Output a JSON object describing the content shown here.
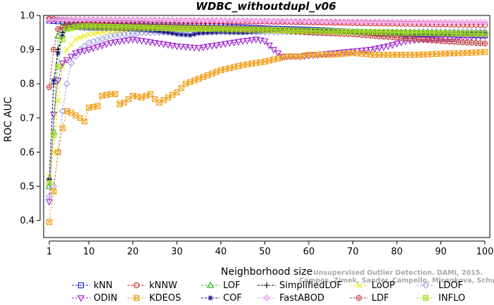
{
  "chart_data": {
    "type": "line",
    "title": "WDBC_withoutdupl_v06",
    "xlabel": "Neighborhood size",
    "ylabel": "ROC AUC",
    "xlim": [
      1,
      100
    ],
    "ylim": [
      0.35,
      1.0
    ],
    "x_ticks": [
      1,
      10,
      20,
      30,
      40,
      50,
      60,
      70,
      80,
      90,
      100
    ],
    "y_ticks": [
      0.4,
      0.5,
      0.6,
      0.7,
      0.8,
      0.9,
      1.0
    ],
    "x_tick_labels": [
      "1",
      "10",
      "20",
      "30",
      "40",
      "50",
      "60",
      "70",
      "80",
      "90",
      "100"
    ],
    "y_tick_labels": [
      "0.4",
      "0.5",
      "0.6",
      "0.7",
      "0.8",
      "0.9",
      "1.0"
    ],
    "grid": false,
    "legend_position": "bottom",
    "series": [
      {
        "name": "kNN",
        "color": "#1f1fd0",
        "marker": "square-dot",
        "points": [
          [
            1,
            0.985
          ],
          [
            2,
            0.984
          ],
          [
            3,
            0.983
          ],
          [
            5,
            0.982
          ],
          [
            10,
            0.98
          ],
          [
            20,
            0.976
          ],
          [
            30,
            0.972
          ],
          [
            40,
            0.968
          ],
          [
            50,
            0.962
          ],
          [
            60,
            0.958
          ],
          [
            70,
            0.952
          ],
          [
            80,
            0.948
          ],
          [
            90,
            0.945
          ],
          [
            100,
            0.942
          ]
        ]
      },
      {
        "name": "kNNW",
        "color": "#d42020",
        "marker": "circle",
        "points": [
          [
            1,
            0.99
          ],
          [
            3,
            0.988
          ],
          [
            5,
            0.987
          ],
          [
            10,
            0.986
          ],
          [
            20,
            0.985
          ],
          [
            30,
            0.984
          ],
          [
            40,
            0.983
          ],
          [
            50,
            0.982
          ],
          [
            60,
            0.98
          ],
          [
            70,
            0.978
          ],
          [
            80,
            0.976
          ],
          [
            90,
            0.974
          ],
          [
            100,
            0.972
          ]
        ]
      },
      {
        "name": "LOF",
        "color": "#20b020",
        "marker": "triangle-up",
        "points": [
          [
            1,
            0.5
          ],
          [
            2,
            0.66
          ],
          [
            3,
            0.94
          ],
          [
            4,
            0.97
          ],
          [
            5,
            0.972
          ],
          [
            8,
            0.972
          ],
          [
            10,
            0.97
          ],
          [
            20,
            0.968
          ],
          [
            30,
            0.966
          ],
          [
            40,
            0.962
          ],
          [
            50,
            0.958
          ],
          [
            60,
            0.955
          ],
          [
            70,
            0.952
          ],
          [
            80,
            0.95
          ],
          [
            90,
            0.948
          ],
          [
            100,
            0.946
          ]
        ]
      },
      {
        "name": "SimplifiedLOF",
        "color": "#000000",
        "marker": "plus",
        "points": [
          [
            1,
            0.52
          ],
          [
            2,
            0.8
          ],
          [
            3,
            0.9
          ],
          [
            4,
            0.95
          ],
          [
            5,
            0.965
          ],
          [
            8,
            0.97
          ],
          [
            10,
            0.968
          ],
          [
            20,
            0.965
          ],
          [
            30,
            0.962
          ],
          [
            40,
            0.96
          ],
          [
            50,
            0.958
          ],
          [
            60,
            0.955
          ],
          [
            70,
            0.952
          ],
          [
            80,
            0.95
          ],
          [
            90,
            0.948
          ],
          [
            100,
            0.946
          ]
        ]
      },
      {
        "name": "LoOP",
        "color": "#e8e800",
        "marker": "x",
        "points": [
          [
            1,
            0.53
          ],
          [
            2,
            0.6
          ],
          [
            3,
            0.75
          ],
          [
            4,
            0.85
          ],
          [
            5,
            0.9
          ],
          [
            7,
            0.93
          ],
          [
            10,
            0.945
          ],
          [
            15,
            0.955
          ],
          [
            20,
            0.958
          ],
          [
            30,
            0.958
          ],
          [
            40,
            0.955
          ],
          [
            50,
            0.954
          ],
          [
            60,
            0.952
          ],
          [
            70,
            0.951
          ],
          [
            80,
            0.95
          ],
          [
            90,
            0.949
          ],
          [
            100,
            0.948
          ]
        ]
      },
      {
        "name": "LDOF",
        "color": "#a0a0e0",
        "marker": "diamond",
        "points": [
          [
            1,
            0.47
          ],
          [
            2,
            0.5
          ],
          [
            3,
            0.6
          ],
          [
            4,
            0.72
          ],
          [
            5,
            0.8
          ],
          [
            6,
            0.86
          ],
          [
            8,
            0.9
          ],
          [
            10,
            0.92
          ],
          [
            15,
            0.94
          ],
          [
            20,
            0.948
          ],
          [
            30,
            0.952
          ],
          [
            40,
            0.952
          ],
          [
            50,
            0.952
          ],
          [
            60,
            0.952
          ],
          [
            70,
            0.952
          ],
          [
            80,
            0.952
          ],
          [
            90,
            0.952
          ],
          [
            100,
            0.952
          ]
        ]
      },
      {
        "name": "ODIN",
        "color": "#9a20d0",
        "marker": "triangle-down",
        "points": [
          [
            1,
            0.455
          ],
          [
            2,
            0.71
          ],
          [
            3,
            0.81
          ],
          [
            4,
            0.86
          ],
          [
            5,
            0.87
          ],
          [
            7,
            0.89
          ],
          [
            10,
            0.9
          ],
          [
            15,
            0.92
          ],
          [
            20,
            0.93
          ],
          [
            25,
            0.92
          ],
          [
            30,
            0.91
          ],
          [
            35,
            0.905
          ],
          [
            40,
            0.915
          ],
          [
            45,
            0.925
          ],
          [
            48,
            0.93
          ],
          [
            50,
            0.925
          ],
          [
            52,
            0.9
          ],
          [
            54,
            0.88
          ],
          [
            58,
            0.88
          ],
          [
            62,
            0.885
          ],
          [
            66,
            0.89
          ],
          [
            70,
            0.895
          ],
          [
            74,
            0.9
          ],
          [
            78,
            0.91
          ],
          [
            82,
            0.925
          ],
          [
            86,
            0.93
          ],
          [
            90,
            0.93
          ],
          [
            95,
            0.935
          ],
          [
            100,
            0.94
          ]
        ]
      },
      {
        "name": "KDEOS",
        "color": "#f0a018",
        "marker": "square-x",
        "points": [
          [
            1,
            0.395
          ],
          [
            2,
            0.485
          ],
          [
            3,
            0.6
          ],
          [
            4,
            0.67
          ],
          [
            5,
            0.72
          ],
          [
            6,
            0.715
          ],
          [
            8,
            0.7
          ],
          [
            9,
            0.69
          ],
          [
            10,
            0.73
          ],
          [
            12,
            0.735
          ],
          [
            13,
            0.765
          ],
          [
            15,
            0.77
          ],
          [
            16,
            0.77
          ],
          [
            17,
            0.74
          ],
          [
            18,
            0.745
          ],
          [
            20,
            0.765
          ],
          [
            22,
            0.76
          ],
          [
            24,
            0.77
          ],
          [
            25,
            0.755
          ],
          [
            26,
            0.745
          ],
          [
            28,
            0.76
          ],
          [
            30,
            0.775
          ],
          [
            32,
            0.8
          ],
          [
            35,
            0.815
          ],
          [
            40,
            0.84
          ],
          [
            45,
            0.855
          ],
          [
            50,
            0.865
          ],
          [
            55,
            0.88
          ],
          [
            58,
            0.88
          ],
          [
            60,
            0.885
          ],
          [
            65,
            0.885
          ],
          [
            70,
            0.89
          ],
          [
            75,
            0.885
          ],
          [
            80,
            0.885
          ],
          [
            85,
            0.885
          ],
          [
            90,
            0.888
          ],
          [
            95,
            0.89
          ],
          [
            100,
            0.893
          ]
        ]
      },
      {
        "name": "COF",
        "color": "#101080",
        "marker": "asterisk",
        "points": [
          [
            1,
            0.52
          ],
          [
            2,
            0.81
          ],
          [
            3,
            0.89
          ],
          [
            4,
            0.94
          ],
          [
            5,
            0.96
          ],
          [
            6,
            0.965
          ],
          [
            10,
            0.962
          ],
          [
            15,
            0.962
          ],
          [
            20,
            0.96
          ],
          [
            25,
            0.955
          ],
          [
            28,
            0.95
          ],
          [
            30,
            0.945
          ],
          [
            33,
            0.942
          ],
          [
            35,
            0.948
          ],
          [
            40,
            0.952
          ],
          [
            45,
            0.95
          ],
          [
            50,
            0.955
          ],
          [
            55,
            0.96
          ],
          [
            60,
            0.958
          ],
          [
            65,
            0.955
          ],
          [
            70,
            0.95
          ],
          [
            75,
            0.945
          ],
          [
            80,
            0.945
          ],
          [
            82,
            0.94
          ],
          [
            85,
            0.945
          ],
          [
            90,
            0.945
          ],
          [
            95,
            0.948
          ],
          [
            100,
            0.95
          ]
        ]
      },
      {
        "name": "FastABOD",
        "color": "#f0a0f0",
        "marker": "diamond-filled",
        "points": [
          [
            1,
            0.985
          ],
          [
            3,
            0.988
          ],
          [
            5,
            0.988
          ],
          [
            10,
            0.988
          ],
          [
            20,
            0.987
          ],
          [
            30,
            0.986
          ],
          [
            40,
            0.985
          ],
          [
            50,
            0.984
          ],
          [
            60,
            0.983
          ],
          [
            70,
            0.982
          ],
          [
            80,
            0.981
          ],
          [
            90,
            0.98
          ],
          [
            100,
            0.98
          ]
        ]
      },
      {
        "name": "LDF",
        "color": "#c04040",
        "marker": "circle-plus",
        "points": [
          [
            1,
            0.79
          ],
          [
            2,
            0.9
          ],
          [
            3,
            0.96
          ],
          [
            5,
            0.97
          ],
          [
            10,
            0.972
          ],
          [
            20,
            0.968
          ],
          [
            30,
            0.966
          ],
          [
            40,
            0.963
          ],
          [
            50,
            0.96
          ],
          [
            55,
            0.955
          ],
          [
            60,
            0.95
          ],
          [
            70,
            0.945
          ],
          [
            80,
            0.935
          ],
          [
            90,
            0.925
          ],
          [
            100,
            0.918
          ]
        ]
      },
      {
        "name": "INFLO",
        "color": "#a0e020",
        "marker": "square-cross",
        "points": [
          [
            1,
            0.51
          ],
          [
            2,
            0.65
          ],
          [
            3,
            0.85
          ],
          [
            4,
            0.93
          ],
          [
            5,
            0.96
          ],
          [
            8,
            0.968
          ],
          [
            10,
            0.968
          ],
          [
            20,
            0.965
          ],
          [
            30,
            0.962
          ],
          [
            40,
            0.96
          ],
          [
            50,
            0.958
          ],
          [
            60,
            0.955
          ],
          [
            70,
            0.952
          ],
          [
            80,
            0.95
          ],
          [
            90,
            0.948
          ],
          [
            100,
            0.946
          ]
        ]
      }
    ],
    "legend_order": [
      [
        "kNN",
        "kNNW",
        "LOF",
        "SimplifiedLOF",
        "LoOP",
        "LDOF"
      ],
      [
        "ODIN",
        "KDEOS",
        "COF",
        "FastABOD",
        "LDF",
        "INFLO"
      ]
    ]
  },
  "watermark": {
    "line1": "Unsupervised Outlier Detection. DAMI, 2015.",
    "line2": "Campos, Zimek, Sander, Campello, Micenkova, Schubert, Assent, Houle"
  }
}
